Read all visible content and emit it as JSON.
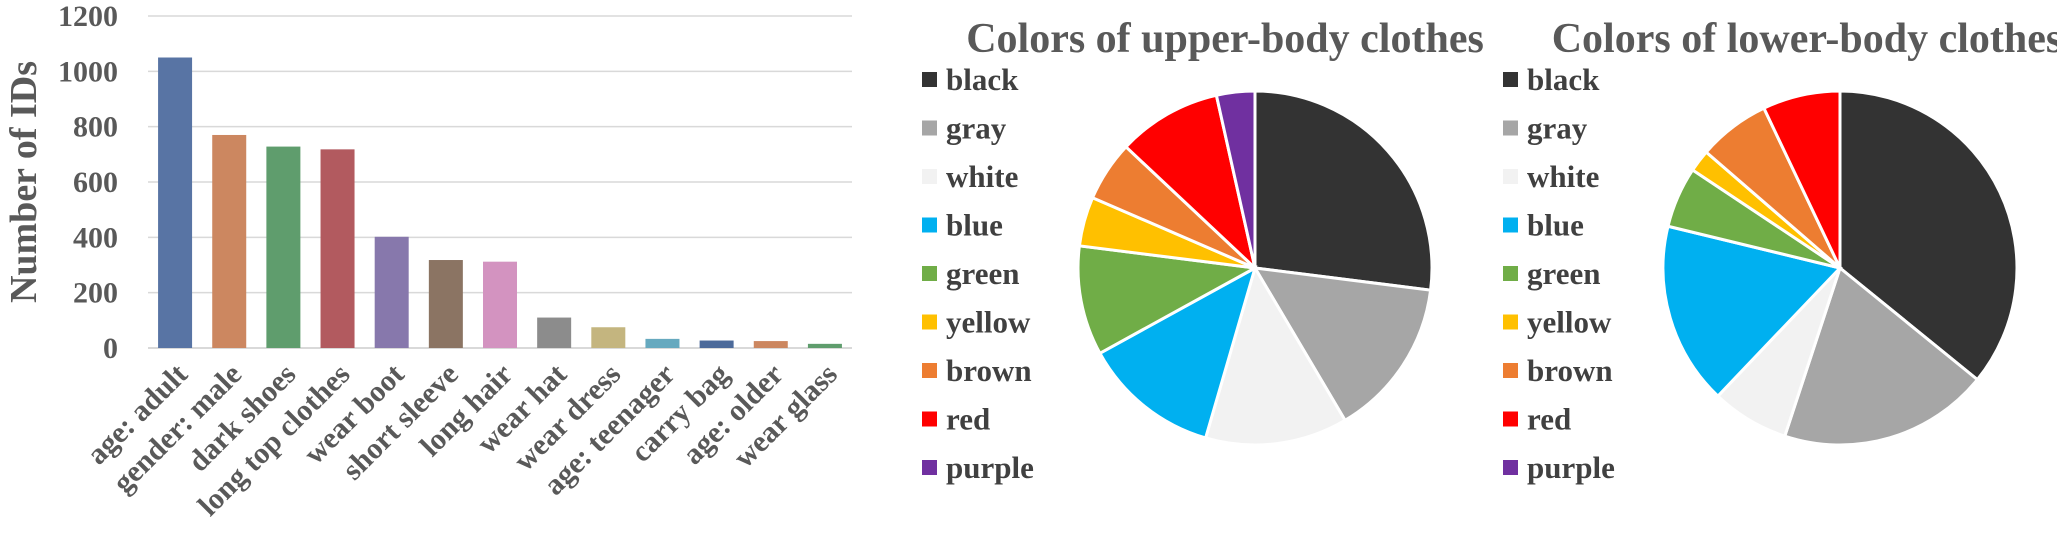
{
  "chart_data": [
    {
      "type": "bar",
      "ylabel": "Number of IDs",
      "xlabel": "",
      "ylim": [
        0,
        1200
      ],
      "yticks": [
        0,
        200,
        400,
        600,
        800,
        1000,
        1200
      ],
      "grid": true,
      "categories": [
        "age: adult",
        "gender: male",
        "dark shoes",
        "long top clothes",
        "wear boot",
        "short sleeve",
        "long hair",
        "wear hat",
        "wear dress",
        "age: teenager",
        "carry bag",
        "age: older",
        "wear glass"
      ],
      "values": [
        1050,
        770,
        728,
        718,
        402,
        318,
        312,
        110,
        75,
        33,
        27,
        25,
        15
      ],
      "colors": [
        "#5874a4",
        "#cc8760",
        "#5f9d6d",
        "#b25a5f",
        "#8778ac",
        "#8b7463",
        "#d393c0",
        "#8c8c8c",
        "#c4b57f",
        "#66a9bf",
        "#4c6a9a",
        "#cc8760",
        "#5f9d6d"
      ]
    },
    {
      "type": "pie",
      "title": "Colors of upper-body clothes",
      "legend": "left",
      "labels": [
        "black",
        "gray",
        "white",
        "blue",
        "green",
        "yellow",
        "brown",
        "red",
        "purple"
      ],
      "values": [
        27,
        14.5,
        13,
        12.5,
        10,
        4.5,
        5.5,
        9.5,
        3.5
      ],
      "colors": [
        "#333333",
        "#a6a6a6",
        "#f2f2f2",
        "#00b0f0",
        "#70ad47",
        "#ffc000",
        "#ed7d31",
        "#ff0000",
        "#7030a0"
      ]
    },
    {
      "type": "pie",
      "title": "Colors of lower-body clothes",
      "legend": "left",
      "labels": [
        "black",
        "gray",
        "white",
        "blue",
        "green",
        "yellow",
        "brown",
        "red",
        "purple"
      ],
      "values": [
        35.5,
        19,
        7,
        16.5,
        5.5,
        2,
        6.5,
        7,
        0
      ],
      "colors": [
        "#333333",
        "#a6a6a6",
        "#f2f2f2",
        "#00b0f0",
        "#70ad47",
        "#ffc000",
        "#ed7d31",
        "#ff0000",
        "#7030a0"
      ]
    }
  ]
}
